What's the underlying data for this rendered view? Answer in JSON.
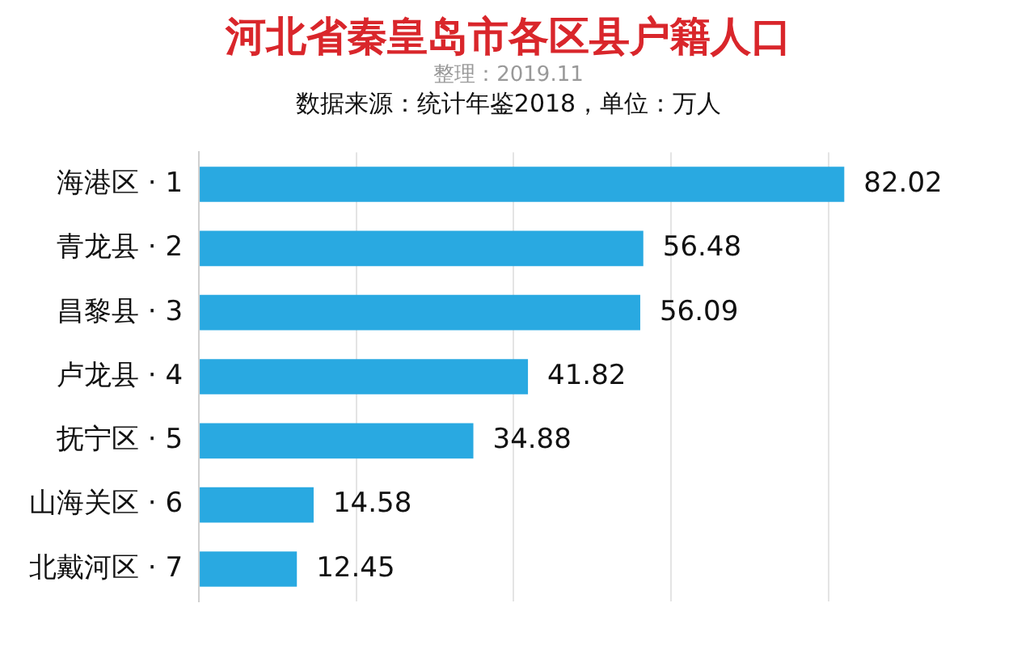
{
  "chart_data": {
    "type": "bar",
    "orientation": "horizontal",
    "title": "河北省秦皇岛市各区县户籍人口",
    "subtitle": "整理：2019.11",
    "annotations": [
      "数据来源：统计年鉴2018，单位：万人"
    ],
    "categories": [
      "海港区 · 1",
      "青龙县 · 2",
      "昌黎县 · 3",
      "卢龙县 · 4",
      "抚宁区 · 5",
      "山海关区 · 6",
      "北戴河区 · 7"
    ],
    "values": [
      82.02,
      56.48,
      56.09,
      41.82,
      34.88,
      14.58,
      12.45
    ],
    "color": "#29a9e1",
    "data_labels": true,
    "xticks": [
      {
        "value": 0,
        "label": null
      },
      {
        "value": 20,
        "label": null
      },
      {
        "value": 40,
        "label": null
      },
      {
        "value": 60,
        "label": null
      },
      {
        "value": 80,
        "label": null
      }
    ],
    "grid": "x",
    "tick_labels": "y",
    "legend": false
  }
}
